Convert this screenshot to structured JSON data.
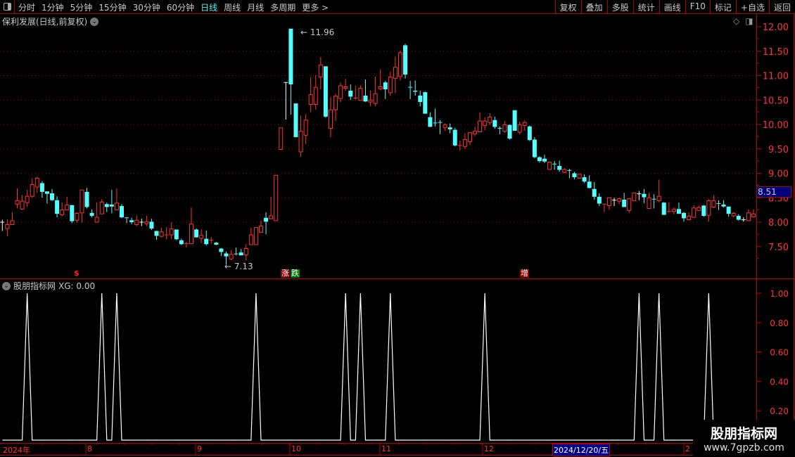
{
  "toolbar": {
    "periods": [
      "分时",
      "1分钟",
      "5分钟",
      "15分钟",
      "30分钟",
      "60分钟",
      "日线",
      "周线",
      "月线",
      "多周期",
      "更多 >"
    ],
    "active_period": "日线",
    "right_buttons": [
      "复权",
      "叠加",
      "多股",
      "统计",
      "画线",
      "F10",
      "标记",
      "+自选",
      "返回"
    ]
  },
  "chart": {
    "title": "保利发展(日线,前复权)",
    "high_label": "11.96",
    "low_label": "7.13",
    "current_price": "8.51",
    "price_ticks": [
      "12.00",
      "11.50",
      "11.00",
      "10.50",
      "10.00",
      "9.50",
      "9.00",
      "8.50",
      "8.00",
      "7.50"
    ],
    "markers": {
      "dollar": "$",
      "rise": "涨",
      "fall": "跌",
      "increase": "增"
    },
    "colors": {
      "up": "#ff3232",
      "down": "#54ffff",
      "flat": "#ffffff",
      "grid": "#b00000"
    },
    "candles_ohlc": [
      [
        8.0,
        8.05,
        7.82,
        8.0
      ],
      [
        7.87,
        8.06,
        7.71,
        7.95
      ],
      [
        7.95,
        8.2,
        7.95,
        8.03
      ],
      [
        8.37,
        8.69,
        8.28,
        8.44
      ],
      [
        8.27,
        8.56,
        8.25,
        8.43
      ],
      [
        8.4,
        8.66,
        8.31,
        8.53
      ],
      [
        8.53,
        8.9,
        8.5,
        8.77
      ],
      [
        8.72,
        8.93,
        8.6,
        8.9
      ],
      [
        8.8,
        8.84,
        8.5,
        8.62
      ],
      [
        8.63,
        8.63,
        8.38,
        8.58
      ],
      [
        8.59,
        8.68,
        8.43,
        8.45
      ],
      [
        8.45,
        8.53,
        8.1,
        8.17
      ],
      [
        8.15,
        8.41,
        8.12,
        8.25
      ],
      [
        8.25,
        8.52,
        8.24,
        8.35
      ],
      [
        8.35,
        8.35,
        7.98,
        8.02
      ],
      [
        8.04,
        8.2,
        7.99,
        8.18
      ],
      [
        8.19,
        8.66,
        7.99,
        8.66
      ],
      [
        8.62,
        8.7,
        8.28,
        8.31
      ],
      [
        8.19,
        8.26,
        8.1,
        8.13
      ],
      [
        8.0,
        8.4,
        8.0,
        8.1
      ],
      [
        8.17,
        8.47,
        8.16,
        8.41
      ],
      [
        8.37,
        8.4,
        8.21,
        8.31
      ],
      [
        8.36,
        8.66,
        8.18,
        8.32
      ],
      [
        8.25,
        8.69,
        8.25,
        8.39
      ],
      [
        8.33,
        8.37,
        8.08,
        8.1
      ],
      [
        8.09,
        8.1,
        7.98,
        8.08
      ],
      [
        8.04,
        8.09,
        7.96,
        8.0
      ],
      [
        7.95,
        8.14,
        7.92,
        8.04
      ],
      [
        8.0,
        8.07,
        7.92,
        8.0
      ],
      [
        7.97,
        8.13,
        7.92,
        8.01
      ],
      [
        8.01,
        8.07,
        7.84,
        7.87
      ],
      [
        7.82,
        7.82,
        7.64,
        7.72
      ],
      [
        7.71,
        7.89,
        7.69,
        7.8
      ],
      [
        7.73,
        7.9,
        7.65,
        7.74
      ],
      [
        7.74,
        8.0,
        7.65,
        7.86
      ],
      [
        7.85,
        7.85,
        7.63,
        7.65
      ],
      [
        7.63,
        7.66,
        7.53,
        7.55
      ],
      [
        7.55,
        7.6,
        7.48,
        7.56
      ],
      [
        7.56,
        8.3,
        7.55,
        7.96
      ],
      [
        7.85,
        7.87,
        7.68,
        7.69
      ],
      [
        7.67,
        7.85,
        7.57,
        7.73
      ],
      [
        7.66,
        7.83,
        7.52,
        7.55
      ],
      [
        7.62,
        7.69,
        7.56,
        7.63
      ],
      [
        7.58,
        7.6,
        7.53,
        7.54
      ],
      [
        7.46,
        7.47,
        7.31,
        7.39
      ],
      [
        7.36,
        7.4,
        7.13,
        7.3
      ],
      [
        7.25,
        7.43,
        7.22,
        7.34
      ],
      [
        7.35,
        7.48,
        7.32,
        7.34
      ],
      [
        7.38,
        7.45,
        7.32,
        7.32
      ],
      [
        7.33,
        7.55,
        7.22,
        7.46
      ],
      [
        7.54,
        7.89,
        7.54,
        7.74
      ],
      [
        7.54,
        7.89,
        7.54,
        7.89
      ],
      [
        7.79,
        8.03,
        7.79,
        7.92
      ],
      [
        8.09,
        8.2,
        7.75,
        8.01
      ],
      [
        8.07,
        8.52,
        8.06,
        8.13
      ],
      [
        8.03,
        8.96,
        8.03,
        8.96
      ],
      [
        9.49,
        9.93,
        9.48,
        9.93
      ],
      [
        10.86,
        10.86,
        10.1,
        10.86
      ],
      [
        11.96,
        11.96,
        10.2,
        10.82
      ],
      [
        10.43,
        10.43,
        9.74,
        9.74
      ],
      [
        9.44,
        10.18,
        9.34,
        9.86
      ],
      [
        9.78,
        10.21,
        9.6,
        10.09
      ],
      [
        10.41,
        10.97,
        10.25,
        10.61
      ],
      [
        10.41,
        11.01,
        10.3,
        10.76
      ],
      [
        10.97,
        11.38,
        10.72,
        11.22
      ],
      [
        11.19,
        11.19,
        10.14,
        10.16
      ],
      [
        9.92,
        10.56,
        9.74,
        10.3
      ],
      [
        10.3,
        10.63,
        10.07,
        10.58
      ],
      [
        10.53,
        10.86,
        10.46,
        10.79
      ],
      [
        10.74,
        10.93,
        10.69,
        10.77
      ],
      [
        10.69,
        10.82,
        10.5,
        10.57
      ],
      [
        10.53,
        10.79,
        10.51,
        10.54
      ],
      [
        10.49,
        10.8,
        10.49,
        10.74
      ],
      [
        10.59,
        10.92,
        10.46,
        10.47
      ],
      [
        10.46,
        10.69,
        10.37,
        10.5
      ],
      [
        10.43,
        10.98,
        10.37,
        10.63
      ],
      [
        10.73,
        11.13,
        10.7,
        10.77
      ],
      [
        10.86,
        10.89,
        10.52,
        10.72
      ],
      [
        10.65,
        11.08,
        10.59,
        10.97
      ],
      [
        10.94,
        11.39,
        10.64,
        11.17
      ],
      [
        10.98,
        11.51,
        10.9,
        11.47
      ],
      [
        11.62,
        11.65,
        10.94,
        11.02
      ],
      [
        10.76,
        10.89,
        10.52,
        10.75
      ],
      [
        10.69,
        10.9,
        10.59,
        10.67
      ],
      [
        10.59,
        10.69,
        10.37,
        10.46
      ],
      [
        10.66,
        10.67,
        10.22,
        10.22
      ],
      [
        10.15,
        10.25,
        9.95,
        9.95
      ],
      [
        10.03,
        10.32,
        9.96,
        10.02
      ],
      [
        10.04,
        10.09,
        9.8,
        10.03
      ],
      [
        9.94,
        10.02,
        9.87,
        9.99
      ],
      [
        9.94,
        10.02,
        9.82,
        9.9
      ],
      [
        9.89,
        9.93,
        9.55,
        9.57
      ],
      [
        9.56,
        9.67,
        9.47,
        9.57
      ],
      [
        9.55,
        9.82,
        9.5,
        9.69
      ],
      [
        9.65,
        9.85,
        9.57,
        9.83
      ],
      [
        9.81,
        9.95,
        9.76,
        9.86
      ],
      [
        9.85,
        10.25,
        9.84,
        10.07
      ],
      [
        9.98,
        10.15,
        9.88,
        10.07
      ],
      [
        10.04,
        10.23,
        9.99,
        10.15
      ],
      [
        10.09,
        10.16,
        9.91,
        9.95
      ],
      [
        9.92,
        9.96,
        9.8,
        9.91
      ],
      [
        9.86,
        10.07,
        9.83,
        9.99
      ],
      [
        9.99,
        10.0,
        9.69,
        9.71
      ],
      [
        10.29,
        10.29,
        9.87,
        9.87
      ],
      [
        9.84,
        10.06,
        9.8,
        9.99
      ],
      [
        9.98,
        10.08,
        9.87,
        10.04
      ],
      [
        9.96,
        9.98,
        9.66,
        9.68
      ],
      [
        9.69,
        9.74,
        9.31,
        9.33
      ],
      [
        9.33,
        9.35,
        9.22,
        9.25
      ],
      [
        9.3,
        9.38,
        9.21,
        9.24
      ],
      [
        9.08,
        9.23,
        9.07,
        9.23
      ],
      [
        9.19,
        9.25,
        9.07,
        9.18
      ],
      [
        9.15,
        9.26,
        9.03,
        9.07
      ],
      [
        9.02,
        9.11,
        9.01,
        9.08
      ],
      [
        9.06,
        9.09,
        8.9,
        9.05
      ],
      [
        9.0,
        9.03,
        8.88,
        8.92
      ],
      [
        8.9,
        8.98,
        8.89,
        8.98
      ],
      [
        8.92,
        8.98,
        8.8,
        8.83
      ],
      [
        8.83,
        8.96,
        8.69,
        8.7
      ],
      [
        8.68,
        8.82,
        8.46,
        8.52
      ],
      [
        8.52,
        8.59,
        8.33,
        8.38
      ],
      [
        8.36,
        8.37,
        8.21,
        8.37
      ],
      [
        8.34,
        8.5,
        8.25,
        8.5
      ],
      [
        8.45,
        8.5,
        8.33,
        8.45
      ],
      [
        8.43,
        8.5,
        8.37,
        8.48
      ],
      [
        8.46,
        8.6,
        8.31,
        8.31
      ],
      [
        8.24,
        8.48,
        8.19,
        8.48
      ],
      [
        8.44,
        8.6,
        8.44,
        8.6
      ],
      [
        8.58,
        8.64,
        8.45,
        8.58
      ],
      [
        8.58,
        8.68,
        8.39,
        8.51
      ],
      [
        8.28,
        8.6,
        8.28,
        8.5
      ],
      [
        8.47,
        8.57,
        8.28,
        8.46
      ],
      [
        8.44,
        8.87,
        8.41,
        8.53
      ],
      [
        8.4,
        8.41,
        8.15,
        8.15
      ],
      [
        8.21,
        8.41,
        8.19,
        8.22
      ],
      [
        8.22,
        8.3,
        8.16,
        8.26
      ],
      [
        8.27,
        8.4,
        8.17,
        8.17
      ],
      [
        8.19,
        8.21,
        8.01,
        8.08
      ],
      [
        8.05,
        8.2,
        8.05,
        8.12
      ],
      [
        8.1,
        8.35,
        8.09,
        8.29
      ],
      [
        8.24,
        8.34,
        8.24,
        8.3
      ],
      [
        8.34,
        8.35,
        8.11,
        8.13
      ],
      [
        8.14,
        8.47,
        8.01,
        8.44
      ],
      [
        8.31,
        8.55,
        8.29,
        8.44
      ],
      [
        8.38,
        8.45,
        8.25,
        8.37
      ],
      [
        8.36,
        8.45,
        8.3,
        8.32
      ],
      [
        8.32,
        8.32,
        8.11,
        8.17
      ],
      [
        8.13,
        8.21,
        8.1,
        8.18
      ],
      [
        8.13,
        8.16,
        8.03,
        8.05
      ],
      [
        8.05,
        8.1,
        8.01,
        8.05
      ],
      [
        8.03,
        8.26,
        8.02,
        8.19
      ],
      [
        8.11,
        8.26,
        8.09,
        8.17
      ]
    ]
  },
  "indicator": {
    "name": "股朋指标网",
    "label": "XG: 0.00",
    "ticks": [
      "1.00",
      "0.80",
      "0.60",
      "0.40",
      "0.20"
    ],
    "xg_signal_bars": [
      5,
      20,
      23,
      51,
      69,
      72,
      78,
      97,
      128,
      132,
      142
    ]
  },
  "date_axis": {
    "labels": [
      "2024年",
      "8",
      "9",
      "10",
      "11",
      "12",
      "2"
    ],
    "selected_date": "2024/12/20/五"
  },
  "watermark": {
    "name": "股朋指标网",
    "url": "www.7gpzb.com"
  }
}
